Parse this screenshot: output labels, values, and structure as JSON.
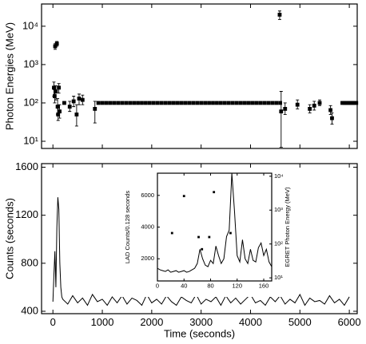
{
  "chart_data": [
    {
      "type": "scatter",
      "ylabel": "Photon Energies   (MeV)",
      "ylog": true,
      "xlim": [
        -230,
        6160
      ],
      "ylim": [
        6.5,
        38000
      ],
      "xtick_labels": false,
      "xticks": [
        0,
        1000,
        2000,
        3000,
        4000,
        5000,
        6000
      ],
      "yticks": [
        {
          "value": 10,
          "label": "10¹"
        },
        {
          "value": 100,
          "label": "10²"
        },
        {
          "value": 1000,
          "label": "10³"
        },
        {
          "value": 10000,
          "label": "10⁴"
        }
      ],
      "color": "#000000",
      "series": [
        {
          "x": [
            20,
            35,
            45,
            60,
            80,
            95,
            105,
            120,
            135,
            230,
            340,
            420,
            480,
            530,
            600,
            850,
            4590,
            4620,
            4700,
            4950,
            5200,
            5290,
            5400,
            5620,
            5650
          ],
          "values": [
            250,
            150,
            3000,
            200,
            3500,
            80,
            50,
            250,
            60,
            100,
            80,
            110,
            50,
            130,
            120,
            70,
            20000,
            60,
            70,
            90,
            70,
            85,
            100,
            65,
            40
          ],
          "ylow": [
            150,
            100,
            2500,
            120,
            3000,
            50,
            35,
            180,
            40,
            null,
            60,
            80,
            25,
            90,
            90,
            30,
            15000,
            7,
            50,
            70,
            55,
            65,
            85,
            50,
            28
          ],
          "yhigh": [
            350,
            220,
            3500,
            280,
            4000,
            130,
            75,
            320,
            90,
            null,
            110,
            150,
            90,
            170,
            160,
            110,
            25000,
            200,
            100,
            120,
            90,
            110,
            120,
            85,
            55
          ]
        },
        {
          "x": [
            920,
            1000,
            1080,
            1160,
            1240,
            1320,
            1400,
            1480,
            1560,
            1640,
            1720,
            1800,
            1880,
            1960,
            2040,
            2120,
            2200,
            2280,
            2360,
            2440,
            2520,
            2600,
            2680,
            2760,
            2840,
            2920,
            3000,
            3080,
            3160,
            3240,
            3320,
            3400,
            3480,
            3560,
            3640,
            3720,
            3800,
            3880,
            3960,
            4040,
            4120,
            4200,
            4280,
            4360,
            4440,
            4520,
            4600,
            5860,
            5900,
            5940,
            5980,
            6020,
            6060,
            6100,
            6140
          ],
          "values": [
            100,
            100,
            100,
            100,
            100,
            100,
            100,
            100,
            100,
            100,
            100,
            100,
            100,
            100,
            100,
            100,
            100,
            100,
            100,
            100,
            100,
            100,
            100,
            100,
            100,
            100,
            100,
            100,
            100,
            100,
            100,
            100,
            100,
            100,
            100,
            100,
            100,
            100,
            100,
            100,
            100,
            100,
            100,
            100,
            100,
            100,
            100,
            100,
            100,
            100,
            100,
            100,
            100,
            100,
            100
          ]
        }
      ]
    },
    {
      "type": "line",
      "xlabel": "Time    (seconds)",
      "ylabel": "Counts    (seconds)",
      "xlim": [
        -230,
        6160
      ],
      "ylim": [
        380,
        1630
      ],
      "xtick_labels": true,
      "xticks": [
        0,
        1000,
        2000,
        3000,
        4000,
        5000,
        6000
      ],
      "yticks": [
        400,
        800,
        1200,
        1600
      ],
      "color": "#000000",
      "series": [
        {
          "x": [
            0,
            20,
            40,
            60,
            80,
            100,
            120,
            140,
            160,
            180,
            200,
            300,
            400,
            500,
            600,
            700,
            800,
            900,
            1000,
            1100,
            1200,
            1300,
            1400,
            1500,
            1600,
            1700,
            1800,
            1900,
            2000,
            2100,
            2200,
            2300,
            2400,
            2500,
            2600,
            2700,
            2800,
            2900,
            3000,
            3100,
            3200,
            3300,
            3400,
            3500,
            3600,
            3700,
            3800,
            3900,
            4000,
            4100,
            4200,
            4300,
            4400,
            4500,
            4600,
            4700,
            4800,
            4900,
            5000,
            5100,
            5200,
            5300,
            5400,
            5500,
            5600,
            5700,
            5800,
            5900,
            6000
          ],
          "values": [
            480,
            700,
            900,
            600,
            1100,
            1350,
            1250,
            800,
            600,
            520,
            500,
            460,
            530,
            470,
            510,
            450,
            540,
            480,
            500,
            450,
            520,
            470,
            530,
            460,
            510,
            490,
            450,
            540,
            470,
            500,
            460,
            530,
            480,
            450,
            520,
            490,
            470,
            540,
            460,
            500,
            480,
            520,
            450,
            530,
            470,
            510,
            460,
            500,
            540,
            470,
            490,
            450,
            520,
            480,
            530,
            460,
            500,
            470,
            540,
            450,
            510,
            480,
            490,
            460,
            530,
            470,
            500,
            450,
            520
          ]
        }
      ]
    },
    {
      "type": "line",
      "ylabel": "LAD Counts/0.128 seconds",
      "y2label": "EGRET Photon Energy   (MeV)",
      "xlim": [
        0,
        172
      ],
      "ylim": [
        600,
        7400
      ],
      "y2lim": [
        8.1,
        12300
      ],
      "y2log": true,
      "xtick_labels": true,
      "xticks": [
        0,
        40,
        80,
        120,
        160
      ],
      "yticks": [
        2000,
        4000,
        6000
      ],
      "y2ticks": [
        {
          "value": 10,
          "label": "10¹"
        },
        {
          "value": 100,
          "label": "10²"
        },
        {
          "value": 1000,
          "label": "10³"
        },
        {
          "value": 10000,
          "label": "10⁴"
        }
      ],
      "color": "#000000",
      "series": [
        {
          "x": [
            0,
            4,
            8,
            12,
            16,
            20,
            24,
            28,
            32,
            36,
            40,
            44,
            48,
            52,
            56,
            60,
            64,
            68,
            72,
            76,
            80,
            84,
            88,
            92,
            96,
            100,
            104,
            108,
            112,
            116,
            120,
            124,
            128,
            132,
            136,
            140,
            144,
            148,
            152,
            156,
            160,
            164,
            168,
            172
          ],
          "values": [
            1400,
            1300,
            1250,
            1200,
            1300,
            1150,
            1200,
            1250,
            1150,
            1200,
            1250,
            1150,
            1200,
            1300,
            1400,
            1700,
            2600,
            2000,
            1600,
            1500,
            1900,
            1700,
            2800,
            2200,
            1700,
            2000,
            3400,
            3800,
            7400,
            5000,
            2200,
            1800,
            3200,
            2000,
            1700,
            2600,
            1900,
            1800,
            2700,
            3000,
            2200,
            2600,
            1800,
            1500
          ]
        },
        {
          "type": "scatter",
          "axis": "y2",
          "x": [
            22,
            40,
            62,
            67,
            78,
            85,
            110
          ],
          "values": [
            210,
            2600,
            160,
            70,
            160,
            3400,
            210
          ]
        }
      ]
    }
  ]
}
